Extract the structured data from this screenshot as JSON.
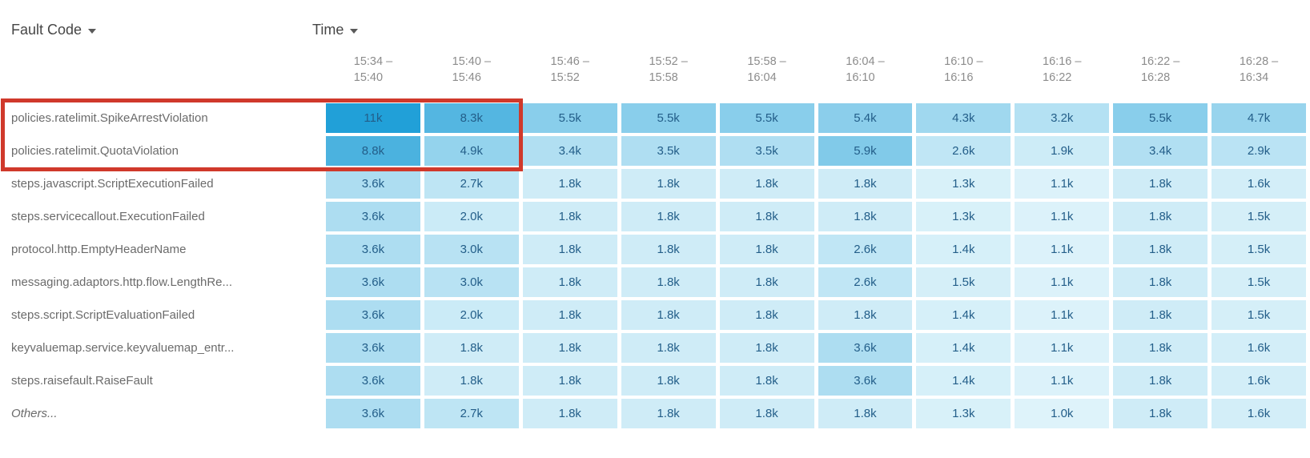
{
  "header": {
    "row_dimension": {
      "label": "Fault Code"
    },
    "col_dimension": {
      "label": "Time"
    }
  },
  "chart_data": {
    "type": "heatmap",
    "row_axis_label": "Fault Code",
    "col_axis_label": "Time",
    "columns": [
      {
        "from": "15:34",
        "to": "15:40"
      },
      {
        "from": "15:40",
        "to": "15:46"
      },
      {
        "from": "15:46",
        "to": "15:52"
      },
      {
        "from": "15:52",
        "to": "15:58"
      },
      {
        "from": "15:58",
        "to": "16:04"
      },
      {
        "from": "16:04",
        "to": "16:10"
      },
      {
        "from": "16:10",
        "to": "16:16"
      },
      {
        "from": "16:16",
        "to": "16:22"
      },
      {
        "from": "16:22",
        "to": "16:28"
      },
      {
        "from": "16:28",
        "to": "16:34"
      }
    ],
    "rows": [
      {
        "label": "policies.ratelimit.SpikeArrestViolation",
        "italic": false,
        "values": [
          "11k",
          "8.3k",
          "5.5k",
          "5.5k",
          "5.5k",
          "5.4k",
          "4.3k",
          "3.2k",
          "5.5k",
          "4.7k"
        ],
        "values_numeric": [
          11000,
          8300,
          5500,
          5500,
          5500,
          5400,
          4300,
          3200,
          5500,
          4700
        ]
      },
      {
        "label": "policies.ratelimit.QuotaViolation",
        "italic": false,
        "values": [
          "8.8k",
          "4.9k",
          "3.4k",
          "3.5k",
          "3.5k",
          "5.9k",
          "2.6k",
          "1.9k",
          "3.4k",
          "2.9k"
        ],
        "values_numeric": [
          8800,
          4900,
          3400,
          3500,
          3500,
          5900,
          2600,
          1900,
          3400,
          2900
        ]
      },
      {
        "label": "steps.javascript.ScriptExecutionFailed",
        "italic": false,
        "values": [
          "3.6k",
          "2.7k",
          "1.8k",
          "1.8k",
          "1.8k",
          "1.8k",
          "1.3k",
          "1.1k",
          "1.8k",
          "1.6k"
        ],
        "values_numeric": [
          3600,
          2700,
          1800,
          1800,
          1800,
          1800,
          1300,
          1100,
          1800,
          1600
        ]
      },
      {
        "label": "steps.servicecallout.ExecutionFailed",
        "italic": false,
        "values": [
          "3.6k",
          "2.0k",
          "1.8k",
          "1.8k",
          "1.8k",
          "1.8k",
          "1.3k",
          "1.1k",
          "1.8k",
          "1.5k"
        ],
        "values_numeric": [
          3600,
          2000,
          1800,
          1800,
          1800,
          1800,
          1300,
          1100,
          1800,
          1500
        ]
      },
      {
        "label": "protocol.http.EmptyHeaderName",
        "italic": false,
        "values": [
          "3.6k",
          "3.0k",
          "1.8k",
          "1.8k",
          "1.8k",
          "2.6k",
          "1.4k",
          "1.1k",
          "1.8k",
          "1.5k"
        ],
        "values_numeric": [
          3600,
          3000,
          1800,
          1800,
          1800,
          2600,
          1400,
          1100,
          1800,
          1500
        ]
      },
      {
        "label": "messaging.adaptors.http.flow.LengthRe...",
        "italic": false,
        "values": [
          "3.6k",
          "3.0k",
          "1.8k",
          "1.8k",
          "1.8k",
          "2.6k",
          "1.5k",
          "1.1k",
          "1.8k",
          "1.5k"
        ],
        "values_numeric": [
          3600,
          3000,
          1800,
          1800,
          1800,
          2600,
          1500,
          1100,
          1800,
          1500
        ]
      },
      {
        "label": "steps.script.ScriptEvaluationFailed",
        "italic": false,
        "values": [
          "3.6k",
          "2.0k",
          "1.8k",
          "1.8k",
          "1.8k",
          "1.8k",
          "1.4k",
          "1.1k",
          "1.8k",
          "1.5k"
        ],
        "values_numeric": [
          3600,
          2000,
          1800,
          1800,
          1800,
          1800,
          1400,
          1100,
          1800,
          1500
        ]
      },
      {
        "label": "keyvaluemap.service.keyvaluemap_entr...",
        "italic": false,
        "values": [
          "3.6k",
          "1.8k",
          "1.8k",
          "1.8k",
          "1.8k",
          "3.6k",
          "1.4k",
          "1.1k",
          "1.8k",
          "1.6k"
        ],
        "values_numeric": [
          3600,
          1800,
          1800,
          1800,
          1800,
          3600,
          1400,
          1100,
          1800,
          1600
        ]
      },
      {
        "label": "steps.raisefault.RaiseFault",
        "italic": false,
        "values": [
          "3.6k",
          "1.8k",
          "1.8k",
          "1.8k",
          "1.8k",
          "3.6k",
          "1.4k",
          "1.1k",
          "1.8k",
          "1.6k"
        ],
        "values_numeric": [
          3600,
          1800,
          1800,
          1800,
          1800,
          3600,
          1400,
          1100,
          1800,
          1600
        ]
      },
      {
        "label": "Others...",
        "italic": true,
        "values": [
          "3.6k",
          "2.7k",
          "1.8k",
          "1.8k",
          "1.8k",
          "1.8k",
          "1.3k",
          "1.0k",
          "1.8k",
          "1.6k"
        ],
        "values_numeric": [
          3600,
          2700,
          1800,
          1800,
          1800,
          1800,
          1300,
          1000,
          1800,
          1600
        ]
      }
    ],
    "value_scale": {
      "min": 1000,
      "max": 11000
    },
    "colors": {
      "cell_min": "#def3fa",
      "cell_max": "#21a0d8",
      "cell_text": "#235e89",
      "highlight": "#d0392b"
    },
    "highlight_annotation": {
      "rows": [
        "policies.ratelimit.SpikeArrestViolation",
        "policies.ratelimit.QuotaViolation"
      ],
      "columns": [
        "15:34 - 15:40",
        "15:40 - 15:46"
      ]
    }
  }
}
